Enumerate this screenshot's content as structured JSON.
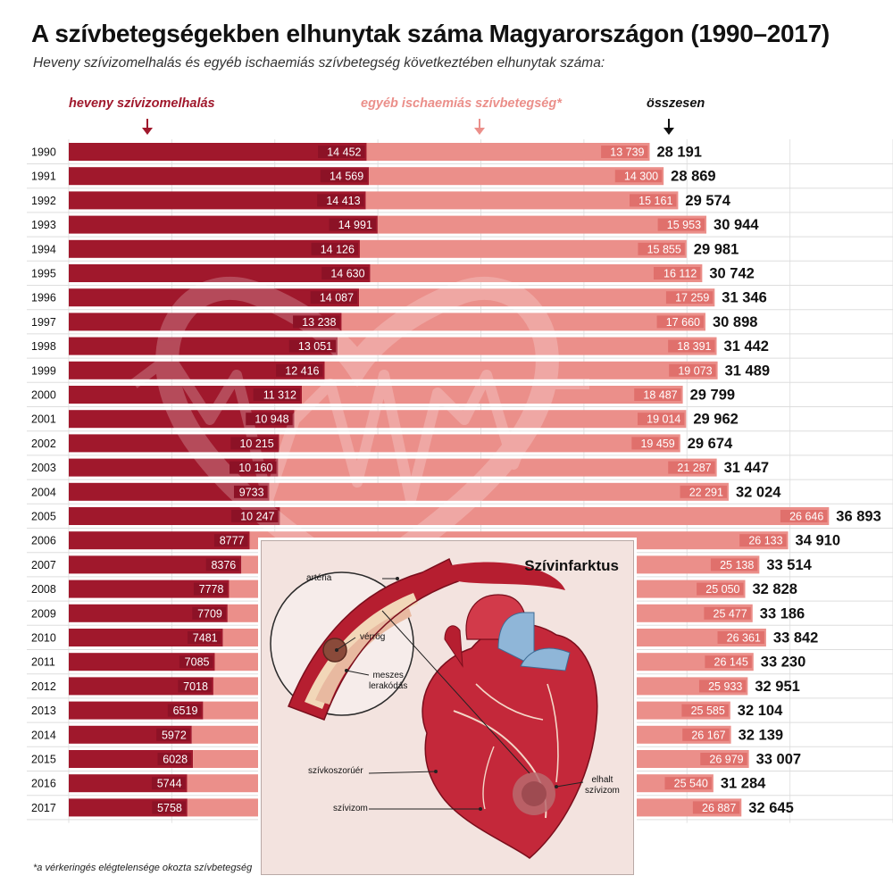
{
  "title": "A szívbetegségekben elhunytak száma Magyarországon (1990–2017)",
  "subtitle": "Heveny szívizomelhalás és egyéb ischaemiás szívbetegség következtében elhunytak száma:",
  "legend": {
    "acute": "heveny szívizomelhalás",
    "other": "egyéb ischaemiás szívbetegség*",
    "total": "összesen"
  },
  "footnote": "*a vérkeringés elégtelensége okozta szívbetegség",
  "colors": {
    "acute": "#a0182c",
    "other": "#eb8f8a",
    "label_box_acute": "#8c1226",
    "label_box_other": "#e0706c"
  },
  "chart_data": {
    "type": "bar",
    "orientation": "horizontal",
    "stacked": true,
    "categories": [
      "1990",
      "1991",
      "1992",
      "1993",
      "1994",
      "1995",
      "1996",
      "1997",
      "1998",
      "1999",
      "2000",
      "2001",
      "2002",
      "2003",
      "2004",
      "2005",
      "2006",
      "2007",
      "2008",
      "2009",
      "2010",
      "2011",
      "2012",
      "2013",
      "2014",
      "2015",
      "2016",
      "2017"
    ],
    "series": [
      {
        "name": "heveny szívizomelhalás",
        "values": [
          14452,
          14569,
          14413,
          14991,
          14126,
          14630,
          14087,
          13238,
          13051,
          12416,
          11312,
          10948,
          10215,
          10160,
          9733,
          10247,
          8777,
          8376,
          7778,
          7709,
          7481,
          7085,
          7018,
          6519,
          5972,
          6028,
          5744,
          5758
        ],
        "labels": [
          "14 452",
          "14 569",
          "14 413",
          "14 991",
          "14 126",
          "14 630",
          "14 087",
          "13 238",
          "13 051",
          "12 416",
          "11 312",
          "10 948",
          "10 215",
          "10 160",
          "9733",
          "10 247",
          "8777",
          "8376",
          "7778",
          "7709",
          "7481",
          "7085",
          "7018",
          "6519",
          "5972",
          "6028",
          "5744",
          "5758"
        ]
      },
      {
        "name": "egyéb ischaemiás szívbetegség*",
        "values": [
          13739,
          14300,
          15161,
          15953,
          15855,
          16112,
          17259,
          17660,
          18391,
          19073,
          18487,
          19014,
          19459,
          21287,
          22291,
          26646,
          26133,
          25138,
          25050,
          25477,
          26361,
          26145,
          25933,
          25585,
          26167,
          26979,
          25540,
          26887
        ],
        "labels": [
          "13 739",
          "14 300",
          "15 161",
          "15 953",
          "15 855",
          "16 112",
          "17 259",
          "17 660",
          "18 391",
          "19 073",
          "18 487",
          "19 014",
          "19 459",
          "21 287",
          "22 291",
          "26 646",
          "26 133",
          "25 138",
          "25 050",
          "25 477",
          "26 361",
          "26 145",
          "25 933",
          "25 585",
          "26 167",
          "26 979",
          "25 540",
          "26 887"
        ]
      }
    ],
    "totals": [
      28191,
      28869,
      29574,
      30944,
      29981,
      30742,
      31346,
      30898,
      31442,
      31489,
      29799,
      29962,
      29674,
      31447,
      32024,
      36893,
      34910,
      33514,
      32828,
      33186,
      33842,
      33230,
      32951,
      32104,
      32139,
      33007,
      31284,
      32645
    ],
    "total_labels": [
      "28 191",
      "28 869",
      "29 574",
      "30 944",
      "29 981",
      "30 742",
      "31 346",
      "30 898",
      "31 442",
      "31 489",
      "29 799",
      "29 962",
      "29 674",
      "31 447",
      "32 024",
      "36 893",
      "34 910",
      "33 514",
      "32 828",
      "33 186",
      "33 842",
      "33 230",
      "32 951",
      "32 104",
      "32 139",
      "33 007",
      "31 284",
      "32 645"
    ],
    "xlim": [
      0,
      40000
    ],
    "grid": true,
    "legend_position": "top"
  },
  "inset": {
    "title": "Szívinfarktus",
    "labels": {
      "artery": "artéria",
      "clot": "vérrög",
      "calcified_line1": "meszes",
      "calcified_line2": "lerakódás",
      "coronary": "szívkoszorúér",
      "muscle": "szívizom",
      "dead_line1": "elhalt",
      "dead_line2": "szívizom"
    }
  }
}
